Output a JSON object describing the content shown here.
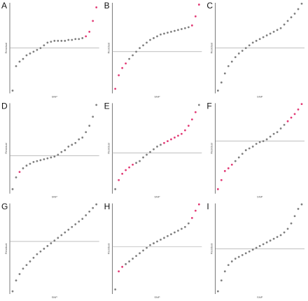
{
  "chart_data": [
    {
      "type": "scatter",
      "title": "A",
      "xlabel": "SNP",
      "ylabel": "Residual",
      "ylim": [
        0,
        100
      ],
      "hline": 50,
      "values": [
        3,
        30,
        35,
        38,
        42,
        44,
        46,
        48,
        50,
        53,
        56,
        57,
        58,
        58,
        58,
        58,
        59,
        59,
        60,
        60,
        61,
        63,
        68,
        80,
        95
      ],
      "colors": [
        "#7f7f7f",
        "#7f7f7f",
        "#7f7f7f",
        "#7f7f7f",
        "#7f7f7f",
        "#7f7f7f",
        "#7f7f7f",
        "#7f7f7f",
        "#7f7f7f",
        "#7f7f7f",
        "#7f7f7f",
        "#7f7f7f",
        "#7f7f7f",
        "#7f7f7f",
        "#7f7f7f",
        "#7f7f7f",
        "#7f7f7f",
        "#7f7f7f",
        "#7f7f7f",
        "#7f7f7f",
        "#7f7f7f",
        "#e23a75",
        "#e23a75",
        "#e23a75",
        "#e23a75"
      ]
    },
    {
      "type": "scatter",
      "title": "B",
      "xlabel": "SNP",
      "ylabel": "Residual",
      "ylim": [
        0,
        100
      ],
      "hline": 46,
      "values": [
        5,
        20,
        28,
        33,
        38,
        42,
        46,
        50,
        53,
        56,
        59,
        61,
        63,
        65,
        66,
        67,
        68,
        69,
        70,
        71,
        72,
        73,
        75,
        85,
        98
      ],
      "colors": [
        "#e23a75",
        "#e23a75",
        "#e23a75",
        "#e23a75",
        "#7f7f7f",
        "#7f7f7f",
        "#7f7f7f",
        "#7f7f7f",
        "#7f7f7f",
        "#7f7f7f",
        "#7f7f7f",
        "#7f7f7f",
        "#7f7f7f",
        "#7f7f7f",
        "#7f7f7f",
        "#7f7f7f",
        "#7f7f7f",
        "#7f7f7f",
        "#7f7f7f",
        "#7f7f7f",
        "#7f7f7f",
        "#7f7f7f",
        "#e23a75",
        "#e23a75",
        "#e23a75"
      ]
    },
    {
      "type": "scatter",
      "title": "C",
      "xlabel": "SNP",
      "ylabel": "Residual",
      "ylim": [
        0,
        100
      ],
      "hline": 50,
      "values": [
        3,
        12,
        22,
        30,
        35,
        40,
        44,
        47,
        50,
        53,
        56,
        58,
        60,
        62,
        64,
        66,
        68,
        70,
        72,
        76,
        80,
        84,
        88,
        93,
        99
      ],
      "colors": [
        "#7f7f7f",
        "#7f7f7f",
        "#7f7f7f",
        "#7f7f7f",
        "#7f7f7f",
        "#7f7f7f",
        "#7f7f7f",
        "#7f7f7f",
        "#7f7f7f",
        "#7f7f7f",
        "#7f7f7f",
        "#7f7f7f",
        "#7f7f7f",
        "#7f7f7f",
        "#7f7f7f",
        "#7f7f7f",
        "#7f7f7f",
        "#7f7f7f",
        "#7f7f7f",
        "#7f7f7f",
        "#7f7f7f",
        "#7f7f7f",
        "#7f7f7f",
        "#7f7f7f",
        "#7f7f7f"
      ]
    },
    {
      "type": "scatter",
      "title": "D",
      "xlabel": "SNP",
      "ylabel": "Residual",
      "ylim": [
        0,
        100
      ],
      "hline": 42,
      "values": [
        5,
        18,
        24,
        28,
        31,
        33,
        35,
        36,
        37,
        38,
        39,
        40,
        41,
        43,
        46,
        48,
        52,
        54,
        56,
        60,
        62,
        68,
        75,
        85,
        98
      ],
      "colors": [
        "#7f7f7f",
        "#7f7f7f",
        "#e23a75",
        "#7f7f7f",
        "#7f7f7f",
        "#7f7f7f",
        "#7f7f7f",
        "#7f7f7f",
        "#7f7f7f",
        "#7f7f7f",
        "#7f7f7f",
        "#7f7f7f",
        "#7f7f7f",
        "#7f7f7f",
        "#7f7f7f",
        "#7f7f7f",
        "#7f7f7f",
        "#7f7f7f",
        "#7f7f7f",
        "#7f7f7f",
        "#7f7f7f",
        "#7f7f7f",
        "#7f7f7f",
        "#7f7f7f",
        "#7f7f7f"
      ]
    },
    {
      "type": "scatter",
      "title": "E",
      "xlabel": "SNP",
      "ylabel": "Residual",
      "ylim": [
        0,
        100
      ],
      "hline": 45,
      "values": [
        5,
        15,
        22,
        26,
        29,
        32,
        34,
        36,
        40,
        43,
        46,
        49,
        52,
        54,
        56,
        58,
        60,
        62,
        64,
        66,
        70,
        75,
        82,
        90,
        98
      ],
      "colors": [
        "#7f7f7f",
        "#e23a75",
        "#e23a75",
        "#e23a75",
        "#e23a75",
        "#e23a75",
        "#7f7f7f",
        "#7f7f7f",
        "#7f7f7f",
        "#7f7f7f",
        "#7f7f7f",
        "#7f7f7f",
        "#7f7f7f",
        "#7f7f7f",
        "#e23a75",
        "#e23a75",
        "#e23a75",
        "#e23a75",
        "#e23a75",
        "#e23a75",
        "#e23a75",
        "#e23a75",
        "#e23a75",
        "#e23a75",
        "#7f7f7f"
      ]
    },
    {
      "type": "scatter",
      "title": "F",
      "xlabel": "SNP",
      "ylabel": "Residual",
      "ylim": [
        0,
        100
      ],
      "hline": 58,
      "values": [
        5,
        15,
        25,
        28,
        32,
        36,
        40,
        44,
        48,
        50,
        52,
        55,
        57,
        58,
        60,
        63,
        66,
        68,
        72,
        76,
        80,
        84,
        88,
        93,
        99
      ],
      "colors": [
        "#e23a75",
        "#e23a75",
        "#e23a75",
        "#e23a75",
        "#e23a75",
        "#7f7f7f",
        "#7f7f7f",
        "#7f7f7f",
        "#7f7f7f",
        "#7f7f7f",
        "#7f7f7f",
        "#7f7f7f",
        "#7f7f7f",
        "#7f7f7f",
        "#7f7f7f",
        "#7f7f7f",
        "#7f7f7f",
        "#7f7f7f",
        "#7f7f7f",
        "#7f7f7f",
        "#e23a75",
        "#e23a75",
        "#e23a75",
        "#e23a75",
        "#e23a75"
      ]
    },
    {
      "type": "scatter",
      "title": "G",
      "xlabel": "SNP",
      "ylabel": "Residual",
      "ylim": [
        0,
        100
      ],
      "hline": 58,
      "values": [
        3,
        15,
        22,
        28,
        32,
        36,
        40,
        44,
        47,
        50,
        53,
        56,
        59,
        62,
        65,
        68,
        71,
        74,
        77,
        80,
        83,
        87,
        91,
        95,
        99
      ],
      "colors": [
        "#7f7f7f",
        "#7f7f7f",
        "#7f7f7f",
        "#7f7f7f",
        "#7f7f7f",
        "#7f7f7f",
        "#7f7f7f",
        "#7f7f7f",
        "#7f7f7f",
        "#7f7f7f",
        "#7f7f7f",
        "#7f7f7f",
        "#7f7f7f",
        "#7f7f7f",
        "#7f7f7f",
        "#7f7f7f",
        "#7f7f7f",
        "#7f7f7f",
        "#7f7f7f",
        "#7f7f7f",
        "#7f7f7f",
        "#7f7f7f",
        "#7f7f7f",
        "#7f7f7f",
        "#7f7f7f"
      ]
    },
    {
      "type": "scatter",
      "title": "H",
      "xlabel": "SNP",
      "ylabel": "Residual",
      "ylim": [
        0,
        100
      ],
      "hline": 52,
      "values": [
        5,
        25,
        30,
        33,
        36,
        39,
        42,
        45,
        48,
        51,
        54,
        56,
        58,
        60,
        62,
        64,
        66,
        68,
        70,
        72,
        74,
        78,
        84,
        92,
        99
      ],
      "colors": [
        "#7f7f7f",
        "#e23a75",
        "#e23a75",
        "#7f7f7f",
        "#7f7f7f",
        "#7f7f7f",
        "#7f7f7f",
        "#7f7f7f",
        "#7f7f7f",
        "#7f7f7f",
        "#7f7f7f",
        "#7f7f7f",
        "#7f7f7f",
        "#7f7f7f",
        "#7f7f7f",
        "#7f7f7f",
        "#7f7f7f",
        "#7f7f7f",
        "#7f7f7f",
        "#7f7f7f",
        "#7f7f7f",
        "#7f7f7f",
        "#e23a75",
        "#e23a75",
        "#e23a75"
      ]
    },
    {
      "type": "scatter",
      "title": "I",
      "xlabel": "SNP",
      "ylabel": "Residual",
      "ylim": [
        0,
        100
      ],
      "hline": 50,
      "values": [
        3,
        15,
        25,
        32,
        36,
        39,
        41,
        43,
        45,
        47,
        49,
        51,
        53,
        55,
        57,
        59,
        61,
        63,
        65,
        68,
        72,
        78,
        86,
        94,
        99
      ],
      "colors": [
        "#7f7f7f",
        "#7f7f7f",
        "#7f7f7f",
        "#7f7f7f",
        "#7f7f7f",
        "#7f7f7f",
        "#7f7f7f",
        "#7f7f7f",
        "#7f7f7f",
        "#7f7f7f",
        "#7f7f7f",
        "#7f7f7f",
        "#7f7f7f",
        "#7f7f7f",
        "#7f7f7f",
        "#7f7f7f",
        "#7f7f7f",
        "#7f7f7f",
        "#7f7f7f",
        "#7f7f7f",
        "#7f7f7f",
        "#7f7f7f",
        "#7f7f7f",
        "#7f7f7f",
        "#7f7f7f"
      ]
    }
  ]
}
